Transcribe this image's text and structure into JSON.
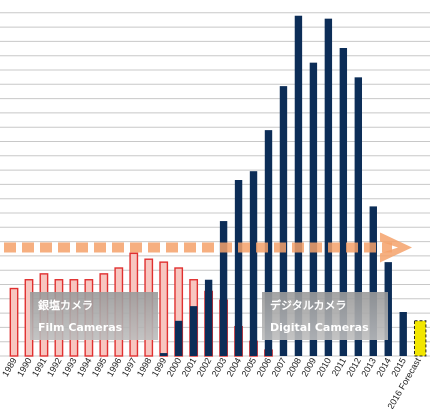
{
  "chart_data": {
    "type": "bar",
    "title": "",
    "xlabel": "",
    "ylabel": "",
    "ylim": [
      0,
      120
    ],
    "grid": true,
    "categories": [
      "1989",
      "1990",
      "1991",
      "1992",
      "1993",
      "1994",
      "1995",
      "1996",
      "1997",
      "1998",
      "1999",
      "2000",
      "2001",
      "2002",
      "2003",
      "2004",
      "2005",
      "2006",
      "2007",
      "2008",
      "2009",
      "2010",
      "2011",
      "2012",
      "2013",
      "2014",
      "2015",
      "2016 Forecast"
    ],
    "series": [
      {
        "name": "銀塩カメラ Film Cameras",
        "color": "#e03030",
        "fill": "#f7c6c0",
        "values": [
          23,
          26,
          28,
          26,
          26,
          26,
          28,
          30,
          35,
          33,
          32,
          30,
          26,
          22,
          19,
          10,
          5,
          2,
          null,
          null,
          null,
          null,
          null,
          null,
          null,
          null,
          null,
          null
        ]
      },
      {
        "name": "デジタルカメラ Digital Cameras",
        "color": "#0c2d57",
        "values": [
          null,
          null,
          null,
          null,
          null,
          null,
          null,
          null,
          null,
          null,
          1,
          12,
          17,
          26,
          46,
          60,
          63,
          77,
          92,
          116,
          100,
          115,
          105,
          95,
          51,
          32,
          15,
          12
        ]
      }
    ],
    "reference_line": {
      "value": 37,
      "color": "#f5a26b"
    },
    "boxes": [
      {
        "line1": "銀塩カメラ",
        "line2": "Film Cameras"
      },
      {
        "line1": "デジタルカメラ",
        "line2": "Digital Cameras"
      }
    ],
    "highlight_last": {
      "color": "#f2e600",
      "stroke": "#222222"
    }
  }
}
